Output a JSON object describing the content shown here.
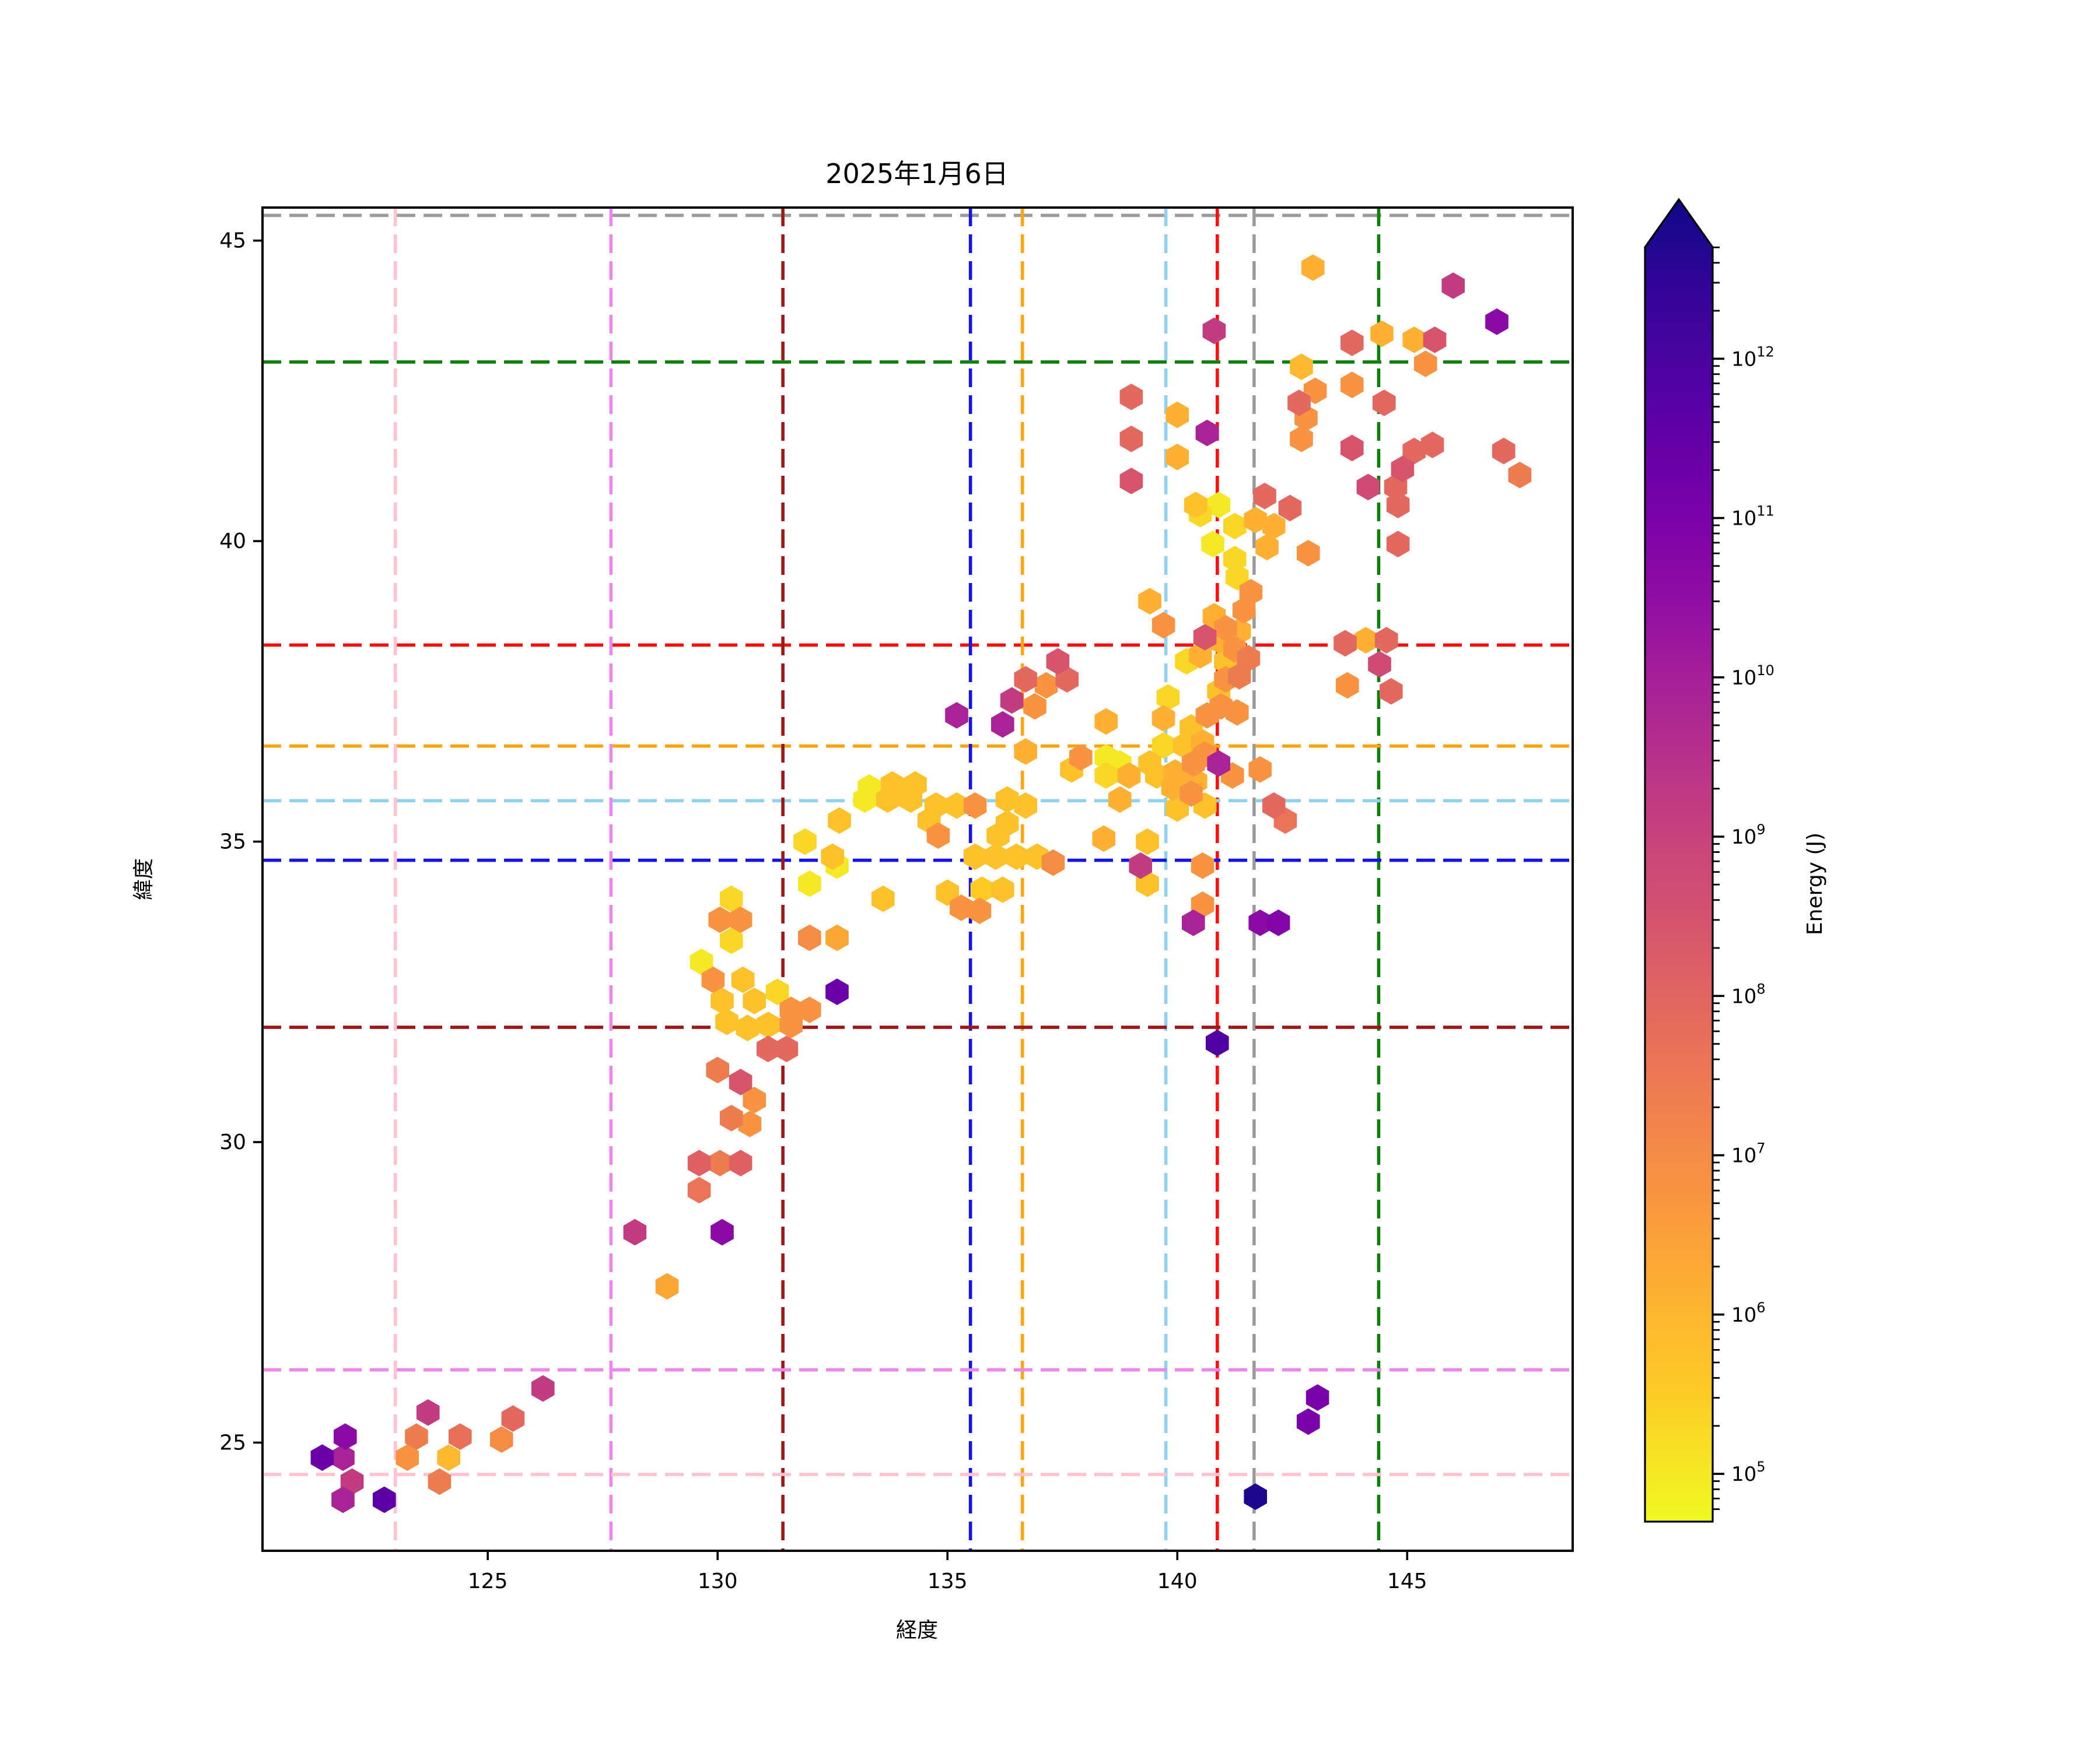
{
  "title": "2025年1月6日",
  "axes": {
    "xlabel": "経度",
    "ylabel": "緯度",
    "xticks": [
      125,
      130,
      135,
      140,
      145
    ],
    "yticks": [
      25,
      30,
      35,
      40,
      45
    ],
    "xlim": [
      120.1,
      148.6
    ],
    "ylim": [
      23.2,
      45.55
    ]
  },
  "colorbar": {
    "label": "Energy (J)",
    "scale": "log",
    "tick_exponents": [
      5,
      6,
      7,
      8,
      9,
      10,
      11,
      12
    ],
    "vmin_exponent": 4.7,
    "vmax_exponent": 12.7,
    "colormap": "plasma_r",
    "extend": "max"
  },
  "reference_lines": [
    {
      "name": "gray",
      "color": "#9b9b9b",
      "lon": 141.67,
      "lat": 45.42
    },
    {
      "name": "green",
      "color": "#0b800b",
      "lon": 144.38,
      "lat": 42.98
    },
    {
      "name": "red",
      "color": "#fa0f0f",
      "lon": 140.87,
      "lat": 38.27
    },
    {
      "name": "orange",
      "color": "#ffa513",
      "lon": 136.63,
      "lat": 36.59
    },
    {
      "name": "skyblue",
      "color": "#90d2ee",
      "lon": 139.75,
      "lat": 35.68
    },
    {
      "name": "blue",
      "color": "#1414e8",
      "lon": 135.5,
      "lat": 34.69
    },
    {
      "name": "darkred",
      "color": "#9c1818",
      "lon": 131.42,
      "lat": 31.91
    },
    {
      "name": "violet",
      "color": "#ec86ec",
      "lon": 127.68,
      "lat": 26.21
    },
    {
      "name": "pink",
      "color": "#ffc3cf",
      "lon": 122.99,
      "lat": 24.47
    }
  ],
  "chart_data": {
    "type": "hexbin",
    "title": "2025年1月6日",
    "xlabel": "経度",
    "ylabel": "緯度",
    "value_label": "Energy (J)",
    "value_format": "log10 exponent of energy in joules",
    "points": [
      [
        121.9,
        25.1,
        10.4
      ],
      [
        121.4,
        24.75,
        11.1
      ],
      [
        121.85,
        24.75,
        9.7
      ],
      [
        122.05,
        24.35,
        9.0
      ],
      [
        121.85,
        24.05,
        9.7
      ],
      [
        122.75,
        24.05,
        11.4
      ],
      [
        123.7,
        25.5,
        9.0
      ],
      [
        123.45,
        25.1,
        7.3
      ],
      [
        123.25,
        24.75,
        6.7
      ],
      [
        124.4,
        25.1,
        7.6
      ],
      [
        124.15,
        24.75,
        5.9
      ],
      [
        123.95,
        24.35,
        7.3
      ],
      [
        125.55,
        25.4,
        7.8
      ],
      [
        125.3,
        25.05,
        6.9
      ],
      [
        126.2,
        25.9,
        9.0
      ],
      [
        128.2,
        28.5,
        9.0
      ],
      [
        130.1,
        28.5,
        10.4
      ],
      [
        128.9,
        27.6,
        6.3
      ],
      [
        129.6,
        29.2,
        7.5
      ],
      [
        129.6,
        29.65,
        8.0
      ],
      [
        130.05,
        29.65,
        7.3
      ],
      [
        130.5,
        29.65,
        8.0
      ],
      [
        130.3,
        30.4,
        7.3
      ],
      [
        130.7,
        30.3,
        6.7
      ],
      [
        130.8,
        30.7,
        6.7
      ],
      [
        130.5,
        31.0,
        8.3
      ],
      [
        130.0,
        31.2,
        7.3
      ],
      [
        131.1,
        31.55,
        7.8
      ],
      [
        131.5,
        31.55,
        7.8
      ],
      [
        130.2,
        32.0,
        5.7
      ],
      [
        130.65,
        31.9,
        5.7
      ],
      [
        131.1,
        31.95,
        5.7
      ],
      [
        131.6,
        31.95,
        6.7
      ],
      [
        130.1,
        32.35,
        5.7
      ],
      [
        130.8,
        32.35,
        5.7
      ],
      [
        131.3,
        32.5,
        5.3
      ],
      [
        131.6,
        32.2,
        6.7
      ],
      [
        132.0,
        32.2,
        6.7
      ],
      [
        132.6,
        32.5,
        11.1
      ],
      [
        129.9,
        32.7,
        6.7
      ],
      [
        130.55,
        32.7,
        5.7
      ],
      [
        129.65,
        33.0,
        5.0
      ],
      [
        130.3,
        33.35,
        5.3
      ],
      [
        130.05,
        33.7,
        6.7
      ],
      [
        130.5,
        33.7,
        6.7
      ],
      [
        130.3,
        34.05,
        5.3
      ],
      [
        132.0,
        33.4,
        6.9
      ],
      [
        132.6,
        33.4,
        6.3
      ],
      [
        132.0,
        34.3,
        5.0
      ],
      [
        132.6,
        34.6,
        5.0
      ],
      [
        131.9,
        35.0,
        5.3
      ],
      [
        132.5,
        34.75,
        5.7
      ],
      [
        132.65,
        35.35,
        5.7
      ],
      [
        133.2,
        35.7,
        5.0
      ],
      [
        133.7,
        35.7,
        5.7
      ],
      [
        134.2,
        35.7,
        5.7
      ],
      [
        133.3,
        35.9,
        5.0
      ],
      [
        133.8,
        35.95,
        5.7
      ],
      [
        134.3,
        35.95,
        5.7
      ],
      [
        133.6,
        34.05,
        5.7
      ],
      [
        134.6,
        35.35,
        5.7
      ],
      [
        134.75,
        35.6,
        5.7
      ],
      [
        135.2,
        35.6,
        5.7
      ],
      [
        135.6,
        35.6,
        6.7
      ],
      [
        134.8,
        35.1,
        6.7
      ],
      [
        135.0,
        34.15,
        5.7
      ],
      [
        135.3,
        33.9,
        6.7
      ],
      [
        135.7,
        33.85,
        6.7
      ],
      [
        135.75,
        34.2,
        5.5
      ],
      [
        136.2,
        34.2,
        5.7
      ],
      [
        135.6,
        34.75,
        5.7
      ],
      [
        136.05,
        34.75,
        5.7
      ],
      [
        136.5,
        34.75,
        5.7
      ],
      [
        136.95,
        34.75,
        5.7
      ],
      [
        137.3,
        34.65,
        6.9
      ],
      [
        136.1,
        35.1,
        5.7
      ],
      [
        136.3,
        35.3,
        5.7
      ],
      [
        136.3,
        35.7,
        5.7
      ],
      [
        136.7,
        35.6,
        5.7
      ],
      [
        136.7,
        36.5,
        6.1
      ],
      [
        136.2,
        36.95,
        9.7
      ],
      [
        136.4,
        37.35,
        9.0
      ],
      [
        136.9,
        37.25,
        6.7
      ],
      [
        136.7,
        37.7,
        7.8
      ],
      [
        137.15,
        37.6,
        6.7
      ],
      [
        137.6,
        37.7,
        7.8
      ],
      [
        137.4,
        38.0,
        8.3
      ],
      [
        135.2,
        37.1,
        9.7
      ],
      [
        137.7,
        36.2,
        5.7
      ],
      [
        137.9,
        36.4,
        6.7
      ],
      [
        138.45,
        37.0,
        6.1
      ],
      [
        138.45,
        36.4,
        5.0
      ],
      [
        138.75,
        36.3,
        5.0
      ],
      [
        138.45,
        36.1,
        5.3
      ],
      [
        138.95,
        36.1,
        6.1
      ],
      [
        139.4,
        36.3,
        5.7
      ],
      [
        138.75,
        35.7,
        6.1
      ],
      [
        138.4,
        35.05,
        6.1
      ],
      [
        139.35,
        35.0,
        5.7
      ],
      [
        139.2,
        34.6,
        9.0
      ],
      [
        139.35,
        34.3,
        5.7
      ],
      [
        140.0,
        35.55,
        5.7
      ],
      [
        140.6,
        35.6,
        5.7
      ],
      [
        140.3,
        35.8,
        6.7
      ],
      [
        139.9,
        35.9,
        6.1
      ],
      [
        139.55,
        36.1,
        5.7
      ],
      [
        139.95,
        36.15,
        6.1
      ],
      [
        140.35,
        36.3,
        6.7
      ],
      [
        140.6,
        36.45,
        6.7
      ],
      [
        140.15,
        36.6,
        5.7
      ],
      [
        139.7,
        36.6,
        5.3
      ],
      [
        140.55,
        36.65,
        6.1
      ],
      [
        140.9,
        36.3,
        9.7
      ],
      [
        141.2,
        36.1,
        6.7
      ],
      [
        141.8,
        36.2,
        6.7
      ],
      [
        140.4,
        36.0,
        6.1
      ],
      [
        140.55,
        34.6,
        6.7
      ],
      [
        140.55,
        33.95,
        6.7
      ],
      [
        140.35,
        33.65,
        9.7
      ],
      [
        141.8,
        33.65,
        10.4
      ],
      [
        142.2,
        33.65,
        10.6
      ],
      [
        142.1,
        35.6,
        7.8
      ],
      [
        142.35,
        35.35,
        7.5
      ],
      [
        140.87,
        31.65,
        11.6
      ],
      [
        141.7,
        24.1,
        12.5
      ],
      [
        143.05,
        25.75,
        10.8
      ],
      [
        142.85,
        25.35,
        10.8
      ],
      [
        139.4,
        39.0,
        6.1
      ],
      [
        139.7,
        38.6,
        6.7
      ],
      [
        140.6,
        38.4,
        8.3
      ],
      [
        140.2,
        38.0,
        5.3
      ],
      [
        140.5,
        38.1,
        6.1
      ],
      [
        139.8,
        37.4,
        5.3
      ],
      [
        139.7,
        37.05,
        6.1
      ],
      [
        140.3,
        36.9,
        5.7
      ],
      [
        140.65,
        37.1,
        6.7
      ],
      [
        140.95,
        37.25,
        6.7
      ],
      [
        141.3,
        37.15,
        6.7
      ],
      [
        140.9,
        37.5,
        5.7
      ],
      [
        141.05,
        37.7,
        6.7
      ],
      [
        141.35,
        37.75,
        7.3
      ],
      [
        141.05,
        38.0,
        5.7
      ],
      [
        141.25,
        38.2,
        6.7
      ],
      [
        141.55,
        38.05,
        7.3
      ],
      [
        140.9,
        38.35,
        6.1
      ],
      [
        141.05,
        38.55,
        6.7
      ],
      [
        141.35,
        38.5,
        6.1
      ],
      [
        140.8,
        38.75,
        6.1
      ],
      [
        141.45,
        38.85,
        6.7
      ],
      [
        141.6,
        39.15,
        6.7
      ],
      [
        141.3,
        39.4,
        5.3
      ],
      [
        140.77,
        39.95,
        5.0
      ],
      [
        140.5,
        40.45,
        5.3
      ],
      [
        140.9,
        40.6,
        5.0
      ],
      [
        141.25,
        40.25,
        5.3
      ],
      [
        141.25,
        39.7,
        5.3
      ],
      [
        140.4,
        40.6,
        5.7
      ],
      [
        141.7,
        40.35,
        6.1
      ],
      [
        142.1,
        40.25,
        6.1
      ],
      [
        142.45,
        40.55,
        7.8
      ],
      [
        141.9,
        40.75,
        7.8
      ],
      [
        141.95,
        39.9,
        6.1
      ],
      [
        142.85,
        39.8,
        6.7
      ],
      [
        144.75,
        40.9,
        7.8
      ],
      [
        144.8,
        39.95,
        7.8
      ],
      [
        144.8,
        40.6,
        7.8
      ],
      [
        144.15,
        40.9,
        8.6
      ],
      [
        143.65,
        38.3,
        7.8
      ],
      [
        144.1,
        38.35,
        6.1
      ],
      [
        144.55,
        38.35,
        7.8
      ],
      [
        144.4,
        37.95,
        8.6
      ],
      [
        144.65,
        37.5,
        7.8
      ],
      [
        143.7,
        37.6,
        6.7
      ],
      [
        144.9,
        41.2,
        8.3
      ],
      [
        143.8,
        41.55,
        8.3
      ],
      [
        145.15,
        41.5,
        7.8
      ],
      [
        145.55,
        41.6,
        7.8
      ],
      [
        147.1,
        41.5,
        7.8
      ],
      [
        147.45,
        41.1,
        7.3
      ],
      [
        139.0,
        42.4,
        7.8
      ],
      [
        139.0,
        41.7,
        7.8
      ],
      [
        139.0,
        41.0,
        8.3
      ],
      [
        140.0,
        42.1,
        6.1
      ],
      [
        140.0,
        41.4,
        6.1
      ],
      [
        140.65,
        41.8,
        9.7
      ],
      [
        140.8,
        43.5,
        9.0
      ],
      [
        142.7,
        42.9,
        5.9
      ],
      [
        143.0,
        42.5,
        6.7
      ],
      [
        142.8,
        42.05,
        6.7
      ],
      [
        143.8,
        42.6,
        6.7
      ],
      [
        142.65,
        42.3,
        7.8
      ],
      [
        142.7,
        41.7,
        6.7
      ],
      [
        143.8,
        43.3,
        7.8
      ],
      [
        144.45,
        43.45,
        6.1
      ],
      [
        145.15,
        43.35,
        6.1
      ],
      [
        145.6,
        43.35,
        8.3
      ],
      [
        145.4,
        42.95,
        6.7
      ],
      [
        144.5,
        42.3,
        7.8
      ],
      [
        142.95,
        44.55,
        6.1
      ],
      [
        146.0,
        44.25,
        9.0
      ],
      [
        146.95,
        43.65,
        10.4
      ]
    ]
  }
}
